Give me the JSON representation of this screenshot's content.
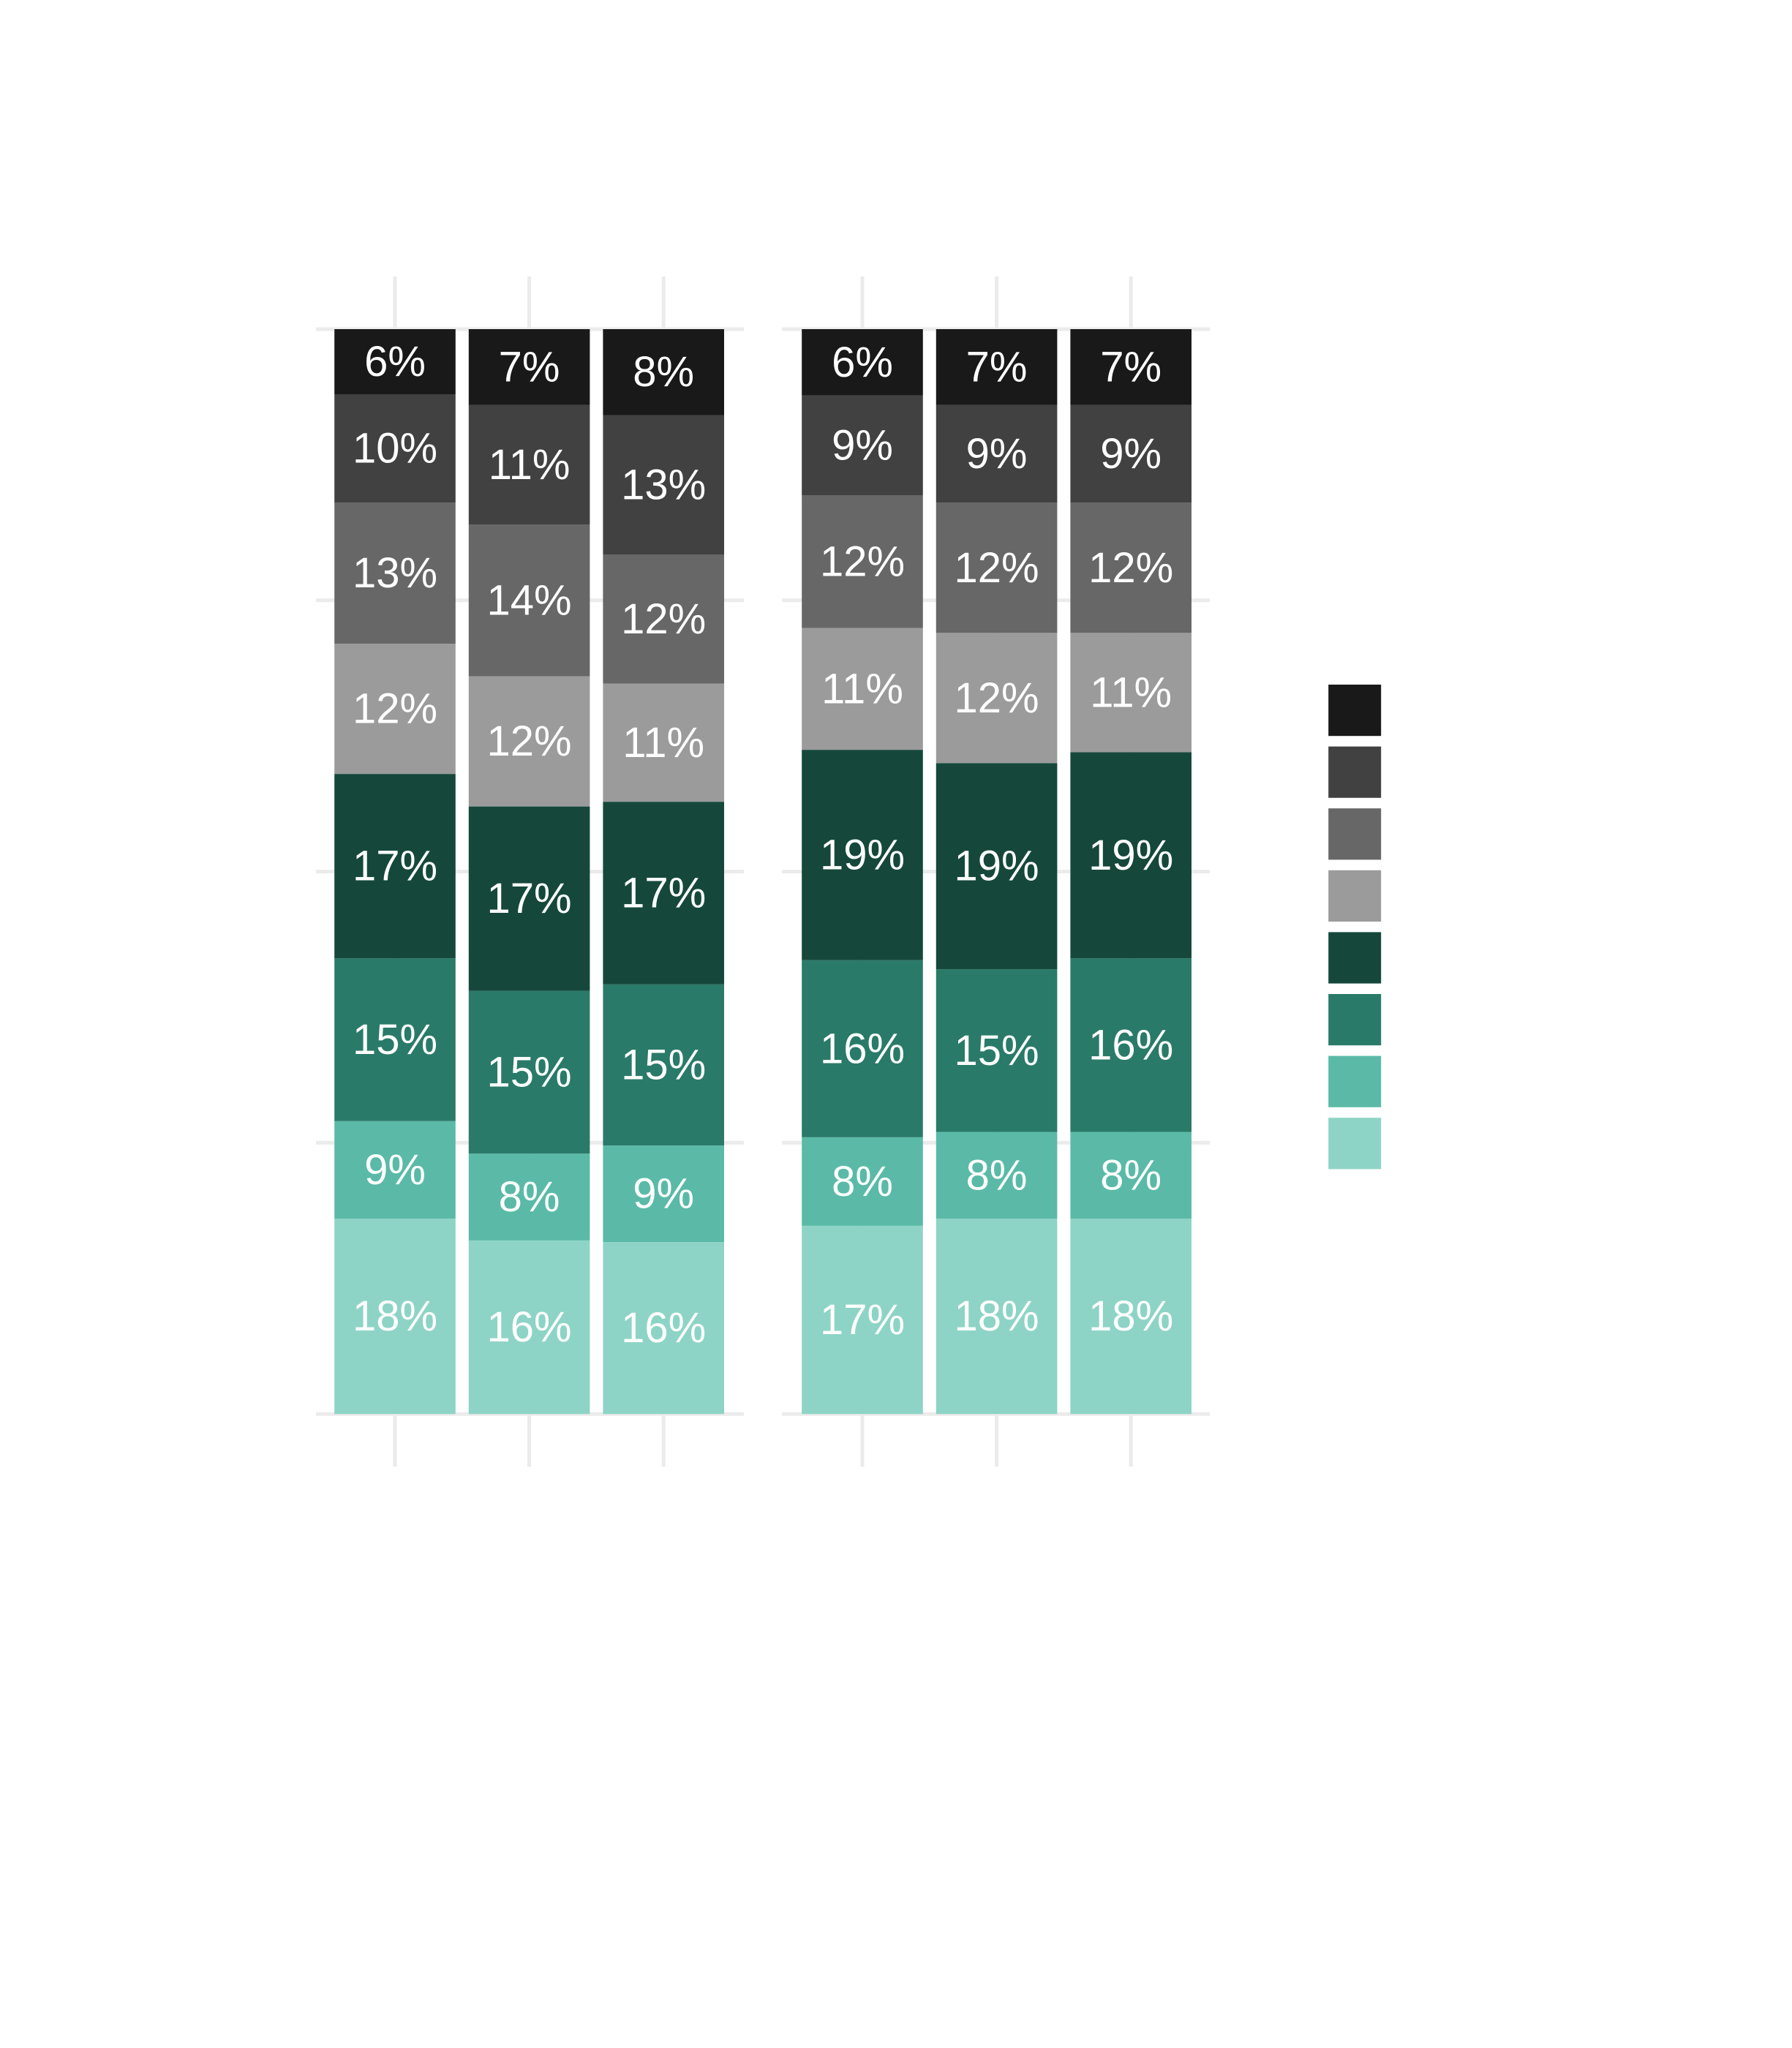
{
  "chart_data": {
    "type": "bar",
    "stacked": true,
    "normalized": true,
    "grid": true,
    "legend_placement": "right",
    "category_order_bottom_to_top": [
      0,
      1,
      2,
      3,
      4,
      5,
      6,
      7
    ],
    "colors": [
      "#8ed4c6",
      "#5abaa7",
      "#2a7a69",
      "#15483b",
      "#9b9b9b",
      "#676767",
      "#414141",
      "#191919"
    ],
    "panels": [
      {
        "bars": [
          {
            "values": [
              18,
              9,
              15,
              17,
              12,
              13,
              10,
              6
            ],
            "labels": [
              "18%",
              "9%",
              "15%",
              "17%",
              "12%",
              "13%",
              "10%",
              "6%"
            ]
          },
          {
            "values": [
              16,
              8,
              15,
              17,
              12,
              14,
              11,
              7
            ],
            "labels": [
              "16%",
              "8%",
              "15%",
              "17%",
              "12%",
              "14%",
              "11%",
              "7%"
            ]
          },
          {
            "values": [
              16,
              9,
              15,
              17,
              11,
              12,
              13,
              8
            ],
            "labels": [
              "16%",
              "9%",
              "15%",
              "17%",
              "11%",
              "12%",
              "13%",
              "8%"
            ]
          }
        ]
      },
      {
        "bars": [
          {
            "values": [
              17,
              8,
              16,
              19,
              11,
              12,
              9,
              6
            ],
            "labels": [
              "17%",
              "8%",
              "16%",
              "19%",
              "11%",
              "12%",
              "9%",
              "6%"
            ]
          },
          {
            "values": [
              18,
              8,
              15,
              19,
              12,
              12,
              9,
              7
            ],
            "labels": [
              "18%",
              "8%",
              "15%",
              "19%",
              "12%",
              "12%",
              "9%",
              "7%"
            ]
          },
          {
            "values": [
              18,
              8,
              16,
              19,
              11,
              12,
              9,
              7
            ],
            "labels": [
              "18%",
              "8%",
              "16%",
              "19%",
              "11%",
              "12%",
              "9%",
              "7%"
            ]
          }
        ]
      }
    ]
  }
}
